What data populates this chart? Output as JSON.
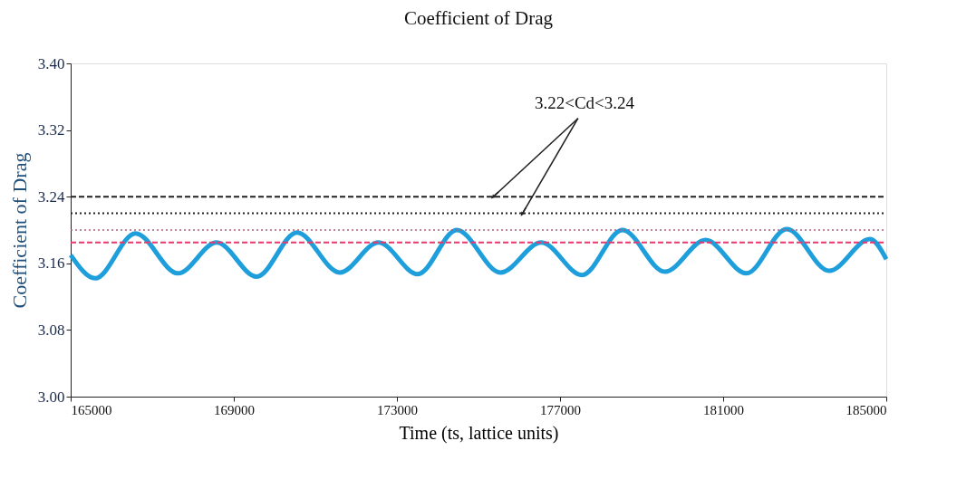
{
  "chart_data": {
    "type": "line",
    "title": "Coefficient of Drag",
    "xlabel": "Time (ts, lattice units)",
    "ylabel": "Coefficient of Drag",
    "x": [
      165000,
      165600,
      166590,
      167630,
      168580,
      169560,
      170550,
      171600,
      172550,
      173510,
      174470,
      175540,
      176540,
      177540,
      178530,
      179570,
      180570,
      181570,
      182560,
      183600,
      184600,
      185000
    ],
    "series": [
      {
        "color": "#1e9fdc",
        "values": [
          3.17,
          3.142,
          3.196,
          3.148,
          3.185,
          3.144,
          3.197,
          3.149,
          3.185,
          3.147,
          3.2,
          3.149,
          3.185,
          3.146,
          3.2,
          3.15,
          3.188,
          3.148,
          3.201,
          3.151,
          3.189,
          3.165
        ]
      }
    ],
    "xlim": [
      165000,
      185000
    ],
    "xticks": [
      165000,
      169000,
      173000,
      177000,
      181000,
      185000
    ],
    "ylim": [
      3.0,
      3.4
    ],
    "yticks": [
      {
        "value": 3.0,
        "label": "3.00"
      },
      {
        "value": 3.08,
        "label": "3.08"
      },
      {
        "value": 3.16,
        "label": "3.16"
      },
      {
        "value": 3.24,
        "label": "3.24"
      },
      {
        "value": 3.32,
        "label": "3.32"
      },
      {
        "value": 3.4,
        "label": "3.40"
      }
    ],
    "ref_lines": [
      {
        "axis": "y",
        "value": 3.24,
        "color": "#222222",
        "line_style": "dashed"
      },
      {
        "axis": "y",
        "value": 3.22,
        "color": "#222222",
        "line_style": "dotted"
      },
      {
        "axis": "y",
        "value": 3.2,
        "color": "#b0607a",
        "line_style": "dotted"
      },
      {
        "axis": "y",
        "value": 3.185,
        "color": "#e8386e",
        "line_style": "dashed"
      }
    ],
    "annotations": [
      {
        "text": "3.22<Cd<3.24",
        "x": 175400,
        "y": 3.24
      }
    ],
    "grid": false,
    "marker": "none",
    "line_style": "solid"
  }
}
